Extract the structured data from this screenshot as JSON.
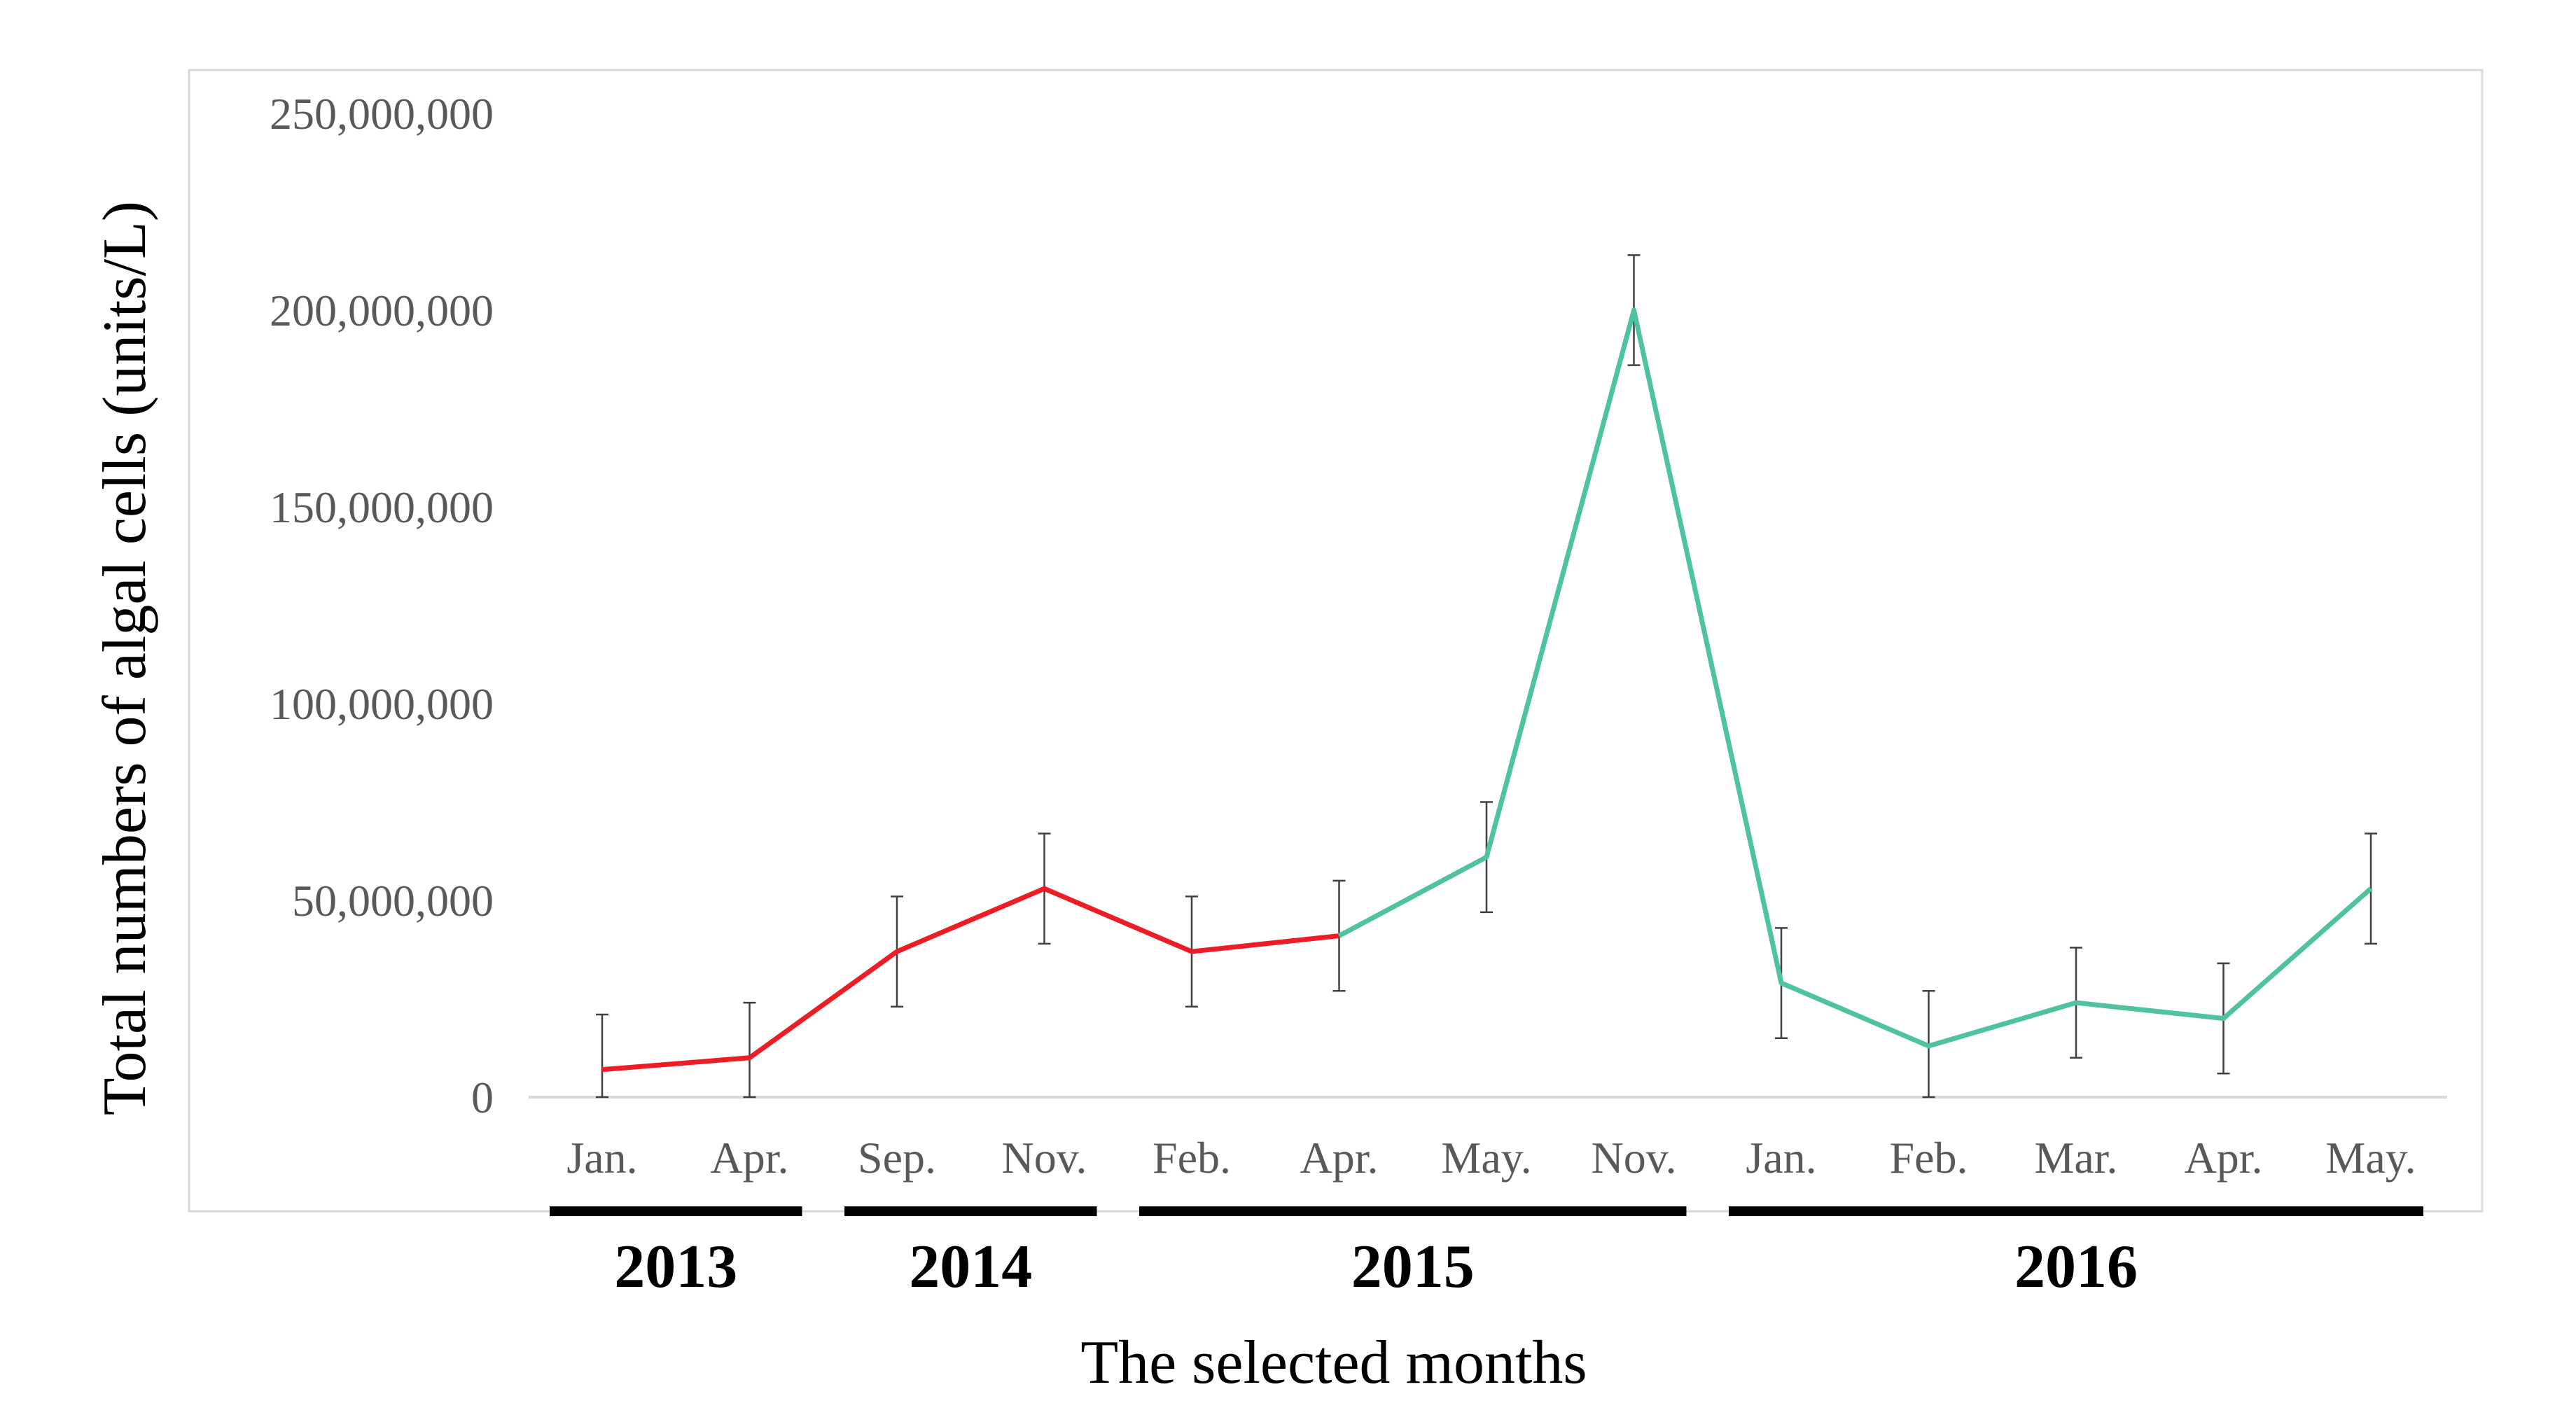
{
  "chart_data": {
    "type": "line",
    "title": "",
    "xlabel": "The selected months",
    "ylabel": "Total numbers of algal cells (units/L)",
    "ylim": [
      0,
      250000000
    ],
    "y_ticks": [
      0,
      50000000,
      100000000,
      150000000,
      200000000,
      250000000
    ],
    "y_tick_labels": [
      "0",
      "50,000,000",
      "100,000,000",
      "150,000,000",
      "200,000,000",
      "250,000,000"
    ],
    "categories": [
      "Jan.",
      "Apr.",
      "Sep.",
      "Nov.",
      "Feb.",
      "Apr.",
      "May.",
      "Nov.",
      "Jan.",
      "Feb.",
      "Mar.",
      "Apr.",
      "May."
    ],
    "values": [
      7000000,
      10000000,
      37000000,
      53000000,
      37000000,
      41000000,
      61000000,
      200000000,
      29000000,
      13000000,
      24000000,
      20000000,
      53000000
    ],
    "error": [
      14000000,
      14000000,
      14000000,
      14000000,
      14000000,
      14000000,
      14000000,
      14000000,
      14000000,
      14000000,
      14000000,
      14000000,
      14000000
    ],
    "segments": [
      {
        "name": "segment-1",
        "color": "#ee1c25",
        "from": 0,
        "to": 5
      },
      {
        "name": "segment-2",
        "color": "#4fc3a1",
        "from": 5,
        "to": 12
      }
    ],
    "year_groups": [
      {
        "label": "2013",
        "from": 0,
        "to": 1
      },
      {
        "label": "2014",
        "from": 2,
        "to": 3
      },
      {
        "label": "2015",
        "from": 4,
        "to": 7
      },
      {
        "label": "2016",
        "from": 8,
        "to": 12
      }
    ]
  }
}
